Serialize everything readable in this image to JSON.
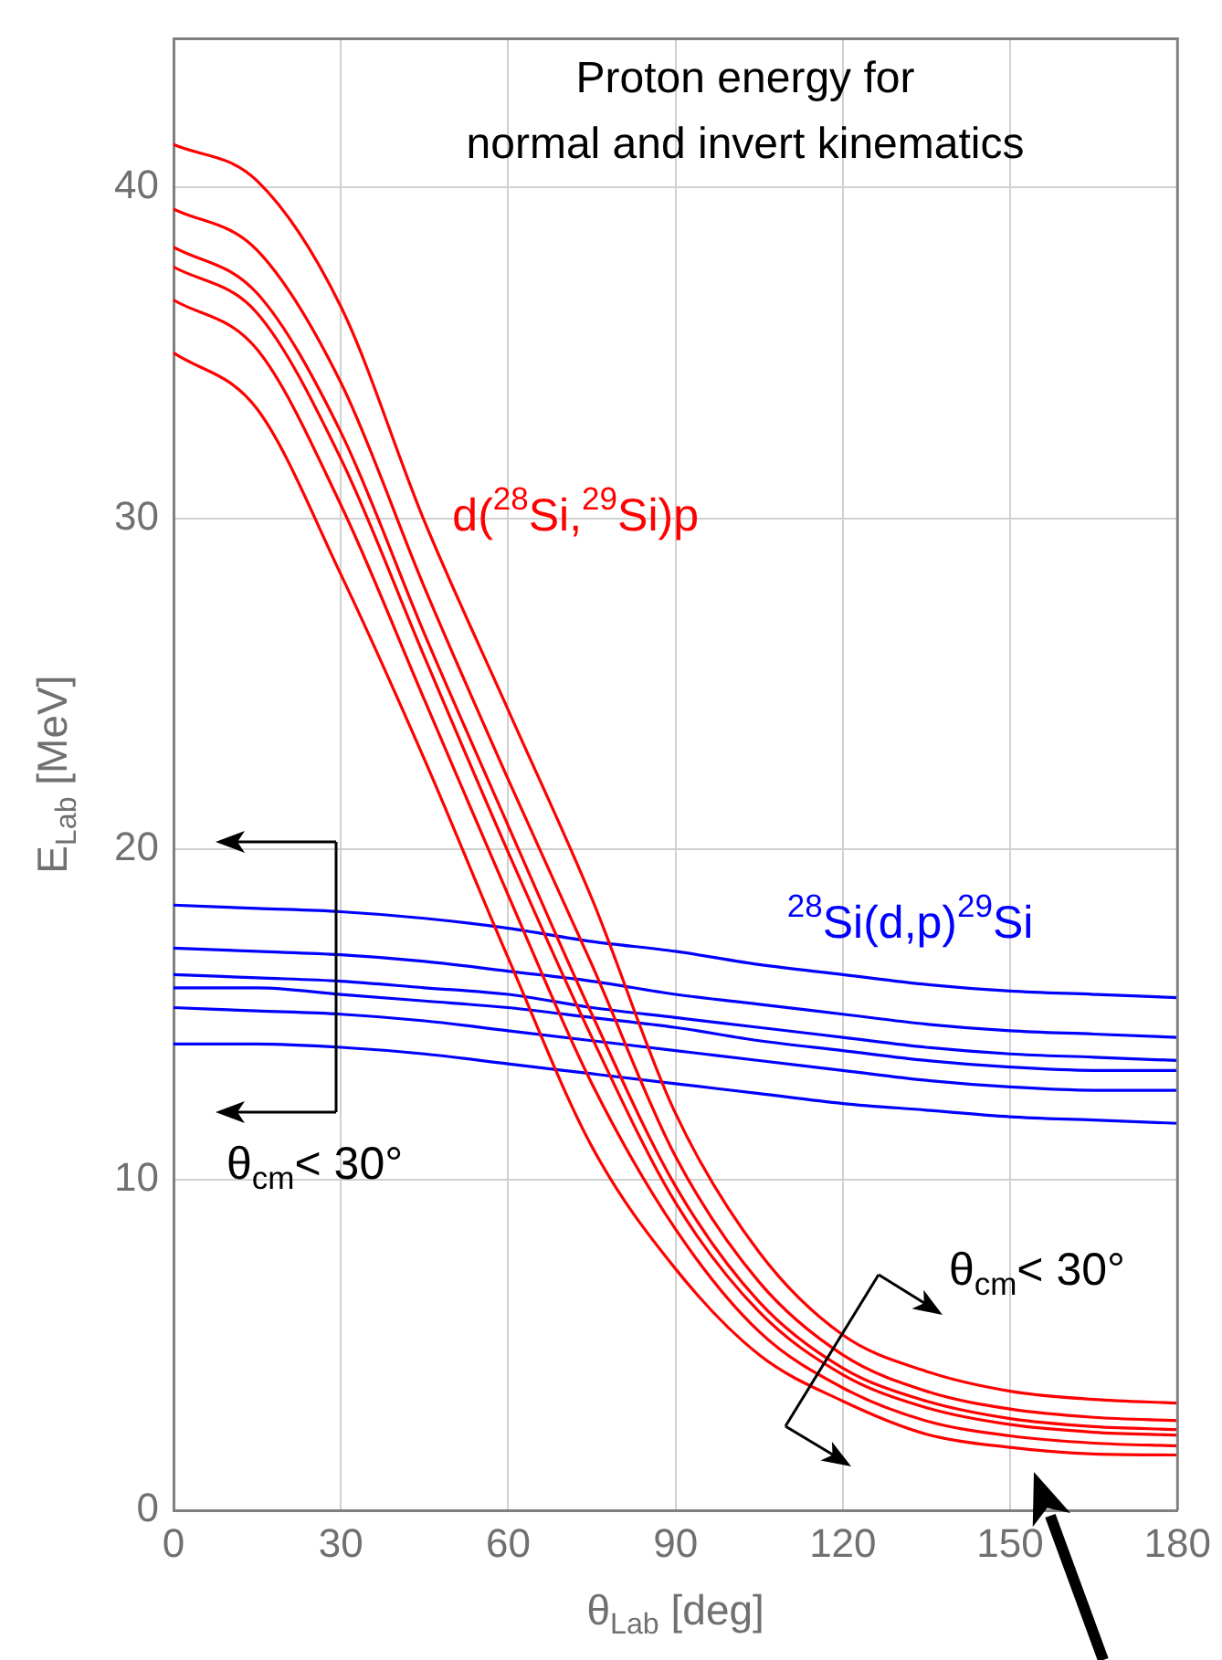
{
  "chart_data": {
    "type": "line",
    "title": "Proton energy for\nnormal and invert kinematics",
    "xlabel": "θ$_{Lab}$ [deg]",
    "ylabel": "E$_{Lab}$ [MeV]",
    "x": [
      0,
      15,
      30,
      45,
      60,
      75,
      90,
      105,
      120,
      135,
      150,
      165,
      180
    ],
    "xlim": [
      0,
      180
    ],
    "xticks": [
      0,
      30,
      60,
      90,
      120,
      150,
      180
    ],
    "ylim": [
      0,
      44.5
    ],
    "yticks": [
      0,
      10,
      20,
      30,
      40
    ],
    "grid": true,
    "marker": "none",
    "series": [
      {
        "color": "#ff0000",
        "values": [
          41.3,
          40.2,
          36.4,
          29.9,
          24.2,
          18.5,
          12.0,
          7.8,
          5.3,
          4.2,
          3.6,
          3.35,
          3.24
        ]
      },
      {
        "color": "#ff0000",
        "values": [
          39.35,
          38.1,
          34.1,
          27.9,
          22.1,
          16.5,
          10.7,
          6.9,
          4.7,
          3.6,
          3.06,
          2.81,
          2.71
        ]
      },
      {
        "color": "#ff0000",
        "values": [
          38.2,
          36.8,
          32.6,
          26.5,
          20.7,
          15.0,
          9.8,
          6.3,
          4.3,
          3.3,
          2.77,
          2.53,
          2.44
        ]
      },
      {
        "color": "#ff0000",
        "values": [
          37.6,
          36.2,
          31.8,
          25.8,
          19.9,
          14.3,
          9.3,
          6.0,
          4.1,
          3.1,
          2.59,
          2.36,
          2.27
        ]
      },
      {
        "color": "#ff0000",
        "values": [
          36.6,
          35.1,
          30.4,
          24.5,
          18.6,
          12.9,
          8.5,
          5.4,
          3.7,
          2.7,
          2.25,
          2.03,
          1.95
        ]
      },
      {
        "color": "#ff0000",
        "values": [
          35.0,
          33.3,
          28.3,
          22.7,
          16.7,
          11.0,
          7.3,
          4.7,
          3.3,
          2.3,
          1.9,
          1.7,
          1.67
        ]
      },
      {
        "color": "#0000ff",
        "values": [
          18.3,
          18.2,
          18.1,
          17.9,
          17.6,
          17.2,
          16.9,
          16.5,
          16.2,
          15.9,
          15.7,
          15.6,
          15.5
        ]
      },
      {
        "color": "#0000ff",
        "values": [
          17.0,
          16.9,
          16.8,
          16.6,
          16.3,
          16.0,
          15.6,
          15.3,
          15.0,
          14.7,
          14.5,
          14.4,
          14.3
        ]
      },
      {
        "color": "#0000ff",
        "values": [
          16.2,
          16.1,
          16.0,
          15.8,
          15.6,
          15.2,
          14.9,
          14.6,
          14.3,
          14.0,
          13.8,
          13.7,
          13.6
        ]
      },
      {
        "color": "#0000ff",
        "values": [
          15.8,
          15.8,
          15.6,
          15.4,
          15.2,
          14.9,
          14.6,
          14.2,
          13.9,
          13.6,
          13.4,
          13.3,
          13.3
        ]
      },
      {
        "color": "#0000ff",
        "values": [
          15.2,
          15.1,
          15.0,
          14.8,
          14.5,
          14.2,
          13.9,
          13.6,
          13.3,
          13.0,
          12.8,
          12.7,
          12.7
        ]
      },
      {
        "color": "#0000ff",
        "values": [
          14.1,
          14.1,
          14.0,
          13.8,
          13.5,
          13.2,
          12.9,
          12.6,
          12.3,
          12.1,
          11.9,
          11.8,
          11.7
        ]
      }
    ],
    "annotations": [
      "d($^{28}$Si,$^{29}$Si)p",
      "$^{28}$Si(d,p)$^{29}$Si",
      "θ$_{cm}$< 30°",
      "θ$_{cm}$< 30°"
    ]
  }
}
